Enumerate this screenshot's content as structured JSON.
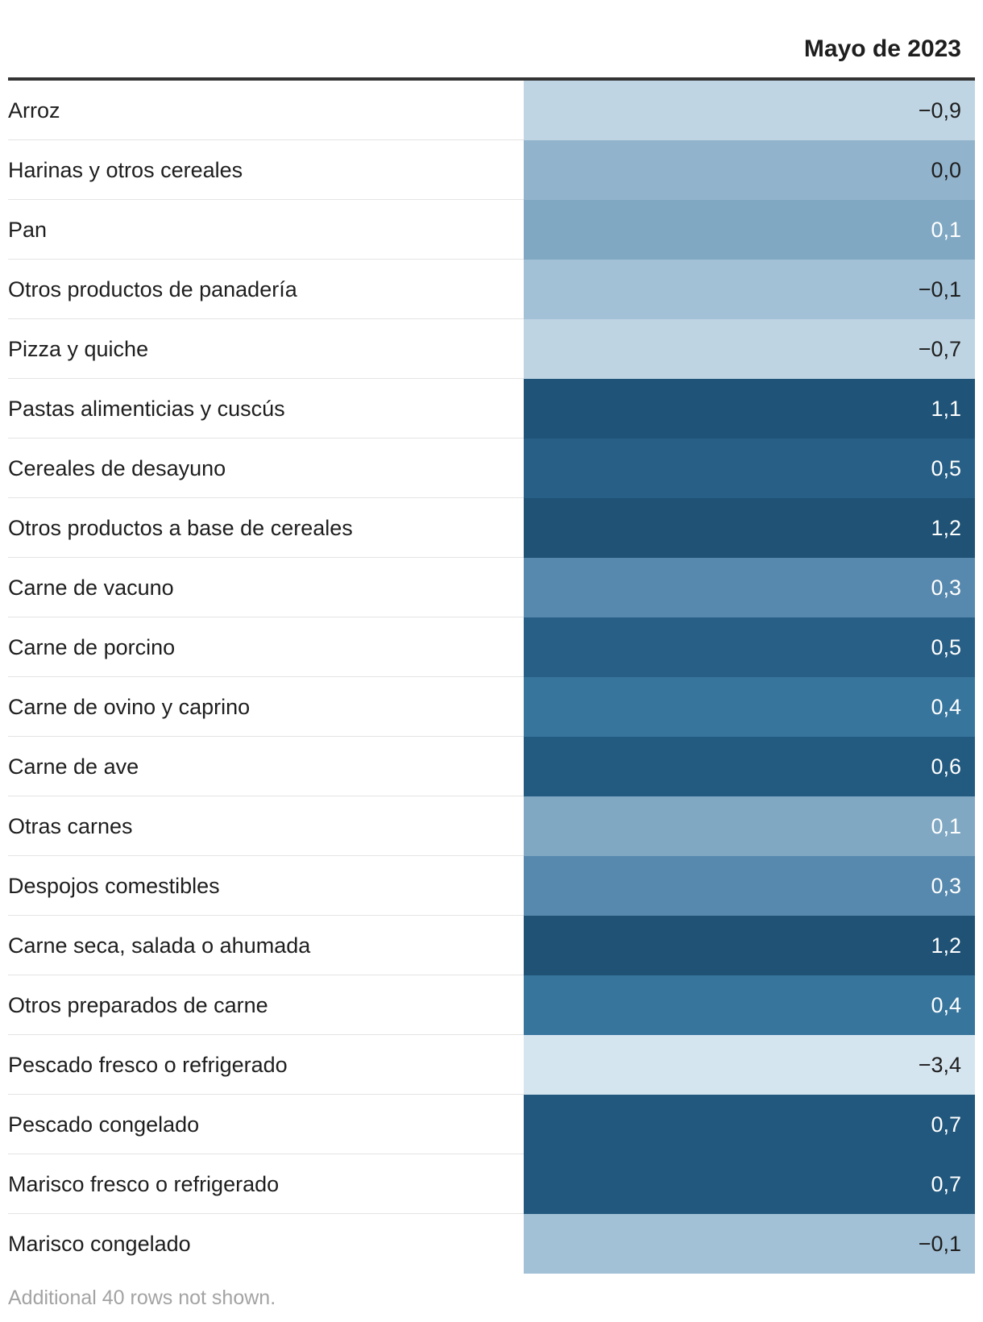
{
  "table": {
    "column_header": "Mayo de 2023",
    "footnote": "Additional 40 rows not shown."
  },
  "chart_data": {
    "type": "table",
    "columns": [
      "",
      "Mayo de 2023"
    ],
    "rows": [
      {
        "label": "Arroz",
        "value": -0.9,
        "display": "−0,9",
        "color": "#bfd5e4",
        "text_color": "#1e1e1e"
      },
      {
        "label": "Harinas y otros cereales",
        "value": 0.0,
        "display": "0,0",
        "color": "#92b3cc",
        "text_color": "#1e1e1e"
      },
      {
        "label": "Pan",
        "value": 0.1,
        "display": "0,1",
        "color": "#80a8c3",
        "text_color": "#ffffff"
      },
      {
        "label": "Otros productos de panadería",
        "value": -0.1,
        "display": "−0,1",
        "color": "#a2c1d6",
        "text_color": "#1e1e1e"
      },
      {
        "label": "Pizza y quiche",
        "value": -0.7,
        "display": "−0,7",
        "color": "#bed4e3",
        "text_color": "#1e1e1e"
      },
      {
        "label": "Pastas alimenticias y cuscús",
        "value": 1.1,
        "display": "1,1",
        "color": "#1f5478",
        "text_color": "#ffffff"
      },
      {
        "label": "Cereales de desayuno",
        "value": 0.5,
        "display": "0,5",
        "color": "#285f86",
        "text_color": "#ffffff"
      },
      {
        "label": "Otros productos a base de cereales",
        "value": 1.2,
        "display": "1,2",
        "color": "#1f5274",
        "text_color": "#ffffff"
      },
      {
        "label": "Carne de vacuno",
        "value": 0.3,
        "display": "0,3",
        "color": "#5788ad",
        "text_color": "#ffffff"
      },
      {
        "label": "Carne de porcino",
        "value": 0.5,
        "display": "0,5",
        "color": "#285f86",
        "text_color": "#ffffff"
      },
      {
        "label": "Carne de ovino y caprino",
        "value": 0.4,
        "display": "0,4",
        "color": "#37759d",
        "text_color": "#ffffff"
      },
      {
        "label": "Carne de ave",
        "value": 0.6,
        "display": "0,6",
        "color": "#235b80",
        "text_color": "#ffffff"
      },
      {
        "label": "Otras carnes",
        "value": 0.1,
        "display": "0,1",
        "color": "#80a8c3",
        "text_color": "#ffffff"
      },
      {
        "label": "Despojos comestibles",
        "value": 0.3,
        "display": "0,3",
        "color": "#5788ad",
        "text_color": "#ffffff"
      },
      {
        "label": "Carne seca, salada o ahumada",
        "value": 1.2,
        "display": "1,2",
        "color": "#1f5274",
        "text_color": "#ffffff"
      },
      {
        "label": "Otros preparados de carne",
        "value": 0.4,
        "display": "0,4",
        "color": "#37759d",
        "text_color": "#ffffff"
      },
      {
        "label": "Pescado fresco o refrigerado",
        "value": -3.4,
        "display": "−3,4",
        "color": "#d5e5f0",
        "text_color": "#1e1e1e"
      },
      {
        "label": "Pescado congelado",
        "value": 0.7,
        "display": "0,7",
        "color": "#22587d",
        "text_color": "#ffffff"
      },
      {
        "label": "Marisco fresco o refrigerado",
        "value": 0.7,
        "display": "0,7",
        "color": "#22587d",
        "text_color": "#ffffff"
      },
      {
        "label": "Marisco congelado",
        "value": -0.1,
        "display": "−0,1",
        "color": "#a2c1d6",
        "text_color": "#1e1e1e"
      }
    ]
  }
}
